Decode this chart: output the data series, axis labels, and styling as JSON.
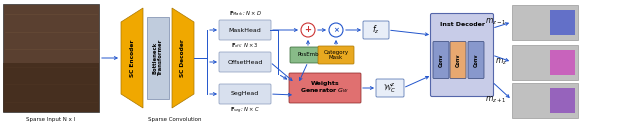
{
  "bg_color": "#ffffff",
  "label_sparse_input": "Sparse Input N x I",
  "label_sparse_conv": "Sparse Convolution",
  "encoder_label": "SC Encoder",
  "transformer_label": "Bottleneck\nTransformer",
  "decoder_label": "SC Decoder",
  "head_mask": "MaskHead",
  "head_offset": "OffsetHead",
  "head_seg": "SegHead",
  "label_fmask": "$\\mathbf{F}_{Mask}$: $N \\times D$",
  "label_foff": "$\\mathbf{F}_{off}$: $N \\times 3$",
  "label_fseg": "$\\mathbf{F}_{seg}$: $N \\times C$",
  "posemb_label": "PosEmb",
  "catmask_label": "Category\nMask",
  "weights_gen_label": "Weights\nGenerator $G_W$",
  "inst_decoder_label": "Inst Decoder",
  "conv_label": "Conv",
  "wc_label": "$\\mathcal{W}_C^z$",
  "fz_label": "$f_z$",
  "output_labels": [
    "$m_{z-1}$",
    "$m_z$",
    "$m_{z+1}$"
  ],
  "gold_color": "#F0A800",
  "light_blue_block": "#C0CCDD",
  "head_bg": "#D8E0EE",
  "posemb_bg": "#88BB88",
  "catmask_bg": "#E8A820",
  "weights_bg": "#E07070",
  "inst_decoder_bg": "#C8CCE8",
  "conv_bg_orange": "#E8A870",
  "conv_bg_blue": "#8898CC",
  "arrow_color": "#2255CC",
  "text_color": "#111111",
  "photo_colors": [
    "#5a4030",
    "#7a5a40",
    "#4a3020"
  ],
  "out_img_bg": "#BBBBBB",
  "out_highlight_colors": [
    "#4455CC",
    "#CC44BB",
    "#8844BB"
  ]
}
